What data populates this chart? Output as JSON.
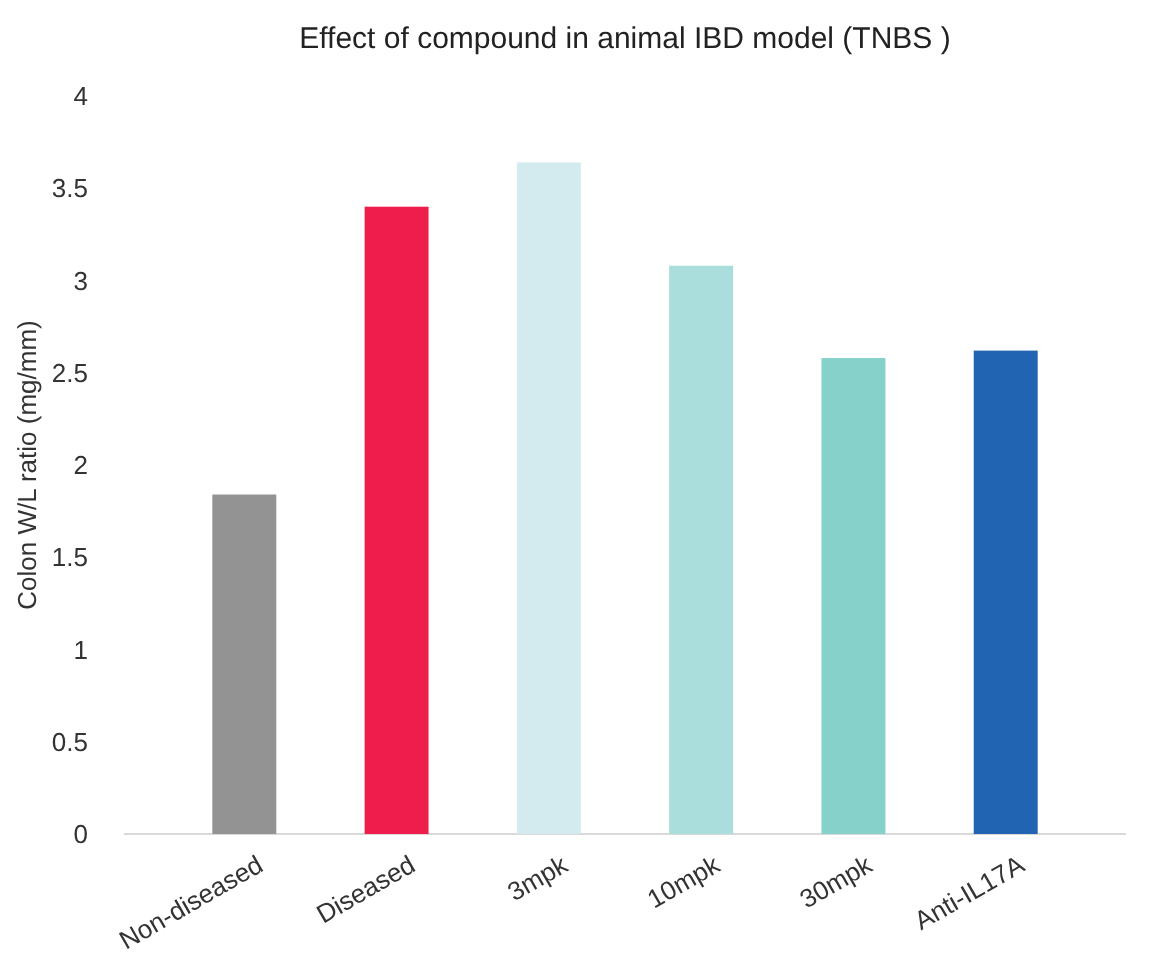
{
  "chart_data": {
    "type": "bar",
    "title": "Effect of compound in animal IBD model (TNBS )",
    "ylabel": "Colon W/L ratio (mg/mm)",
    "categories": [
      "Non-diseased",
      "Diseased",
      "3mpk",
      "10mpk",
      "30mpk",
      "Anti-IL17A"
    ],
    "values": [
      1.84,
      3.4,
      3.64,
      3.08,
      2.58,
      2.62
    ],
    "colors": [
      "#939393",
      "#ee1d4b",
      "#d3ebee",
      "#a9dedc",
      "#86d2cb",
      "#2064b2"
    ],
    "ylim": [
      0,
      4
    ],
    "yticks": [
      0,
      {
        "value": 0.5,
        "label": "0.5"
      },
      1,
      {
        "value": 1.5,
        "label": "1.5"
      },
      2,
      {
        "value": 2.5,
        "label": "2.5"
      },
      3,
      {
        "value": 3.5,
        "label": "3.5"
      },
      4
    ],
    "grid": false
  }
}
